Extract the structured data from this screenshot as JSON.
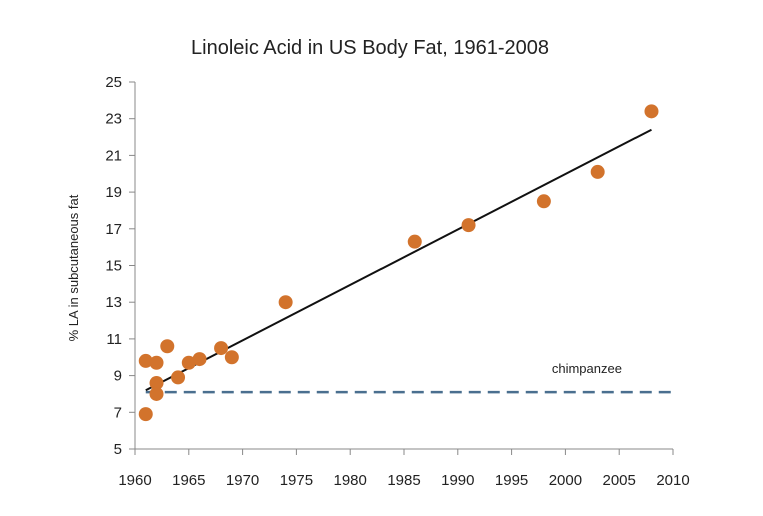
{
  "chart_data": {
    "type": "scatter",
    "title": "Linoleic Acid in US Body Fat, 1961-2008",
    "xlabel": "",
    "ylabel": "% LA in subcutaneous fat",
    "xlim": [
      1960,
      2010
    ],
    "ylim": [
      5,
      25
    ],
    "xticks": [
      1960,
      1965,
      1970,
      1975,
      1980,
      1985,
      1990,
      1995,
      2000,
      2005,
      2010
    ],
    "yticks": [
      5,
      7,
      9,
      11,
      13,
      15,
      17,
      19,
      21,
      23,
      25
    ],
    "grid": false,
    "legend": "none",
    "points": [
      {
        "x": 1961,
        "y": 9.8
      },
      {
        "x": 1961,
        "y": 6.9
      },
      {
        "x": 1962,
        "y": 9.7
      },
      {
        "x": 1962,
        "y": 8.6
      },
      {
        "x": 1962,
        "y": 8.0
      },
      {
        "x": 1963,
        "y": 10.6
      },
      {
        "x": 1964,
        "y": 8.9
      },
      {
        "x": 1965,
        "y": 9.7
      },
      {
        "x": 1966,
        "y": 9.9
      },
      {
        "x": 1968,
        "y": 10.5
      },
      {
        "x": 1969,
        "y": 10.0
      },
      {
        "x": 1974,
        "y": 13.0
      },
      {
        "x": 1986,
        "y": 16.3
      },
      {
        "x": 1991,
        "y": 17.2
      },
      {
        "x": 1998,
        "y": 18.5
      },
      {
        "x": 2003,
        "y": 20.1
      },
      {
        "x": 2008,
        "y": 23.4
      }
    ],
    "trendline": {
      "x": [
        1961,
        2008
      ],
      "y": [
        8.2,
        22.4
      ]
    },
    "reference_line": {
      "y": 8.1,
      "label": "chimpanzee",
      "x_start": 1961,
      "x_end": 2010
    },
    "colors": {
      "points": "#d2732c",
      "trendline": "#111111",
      "reference_line": "#4a6f8f",
      "axis": "#888888"
    }
  }
}
